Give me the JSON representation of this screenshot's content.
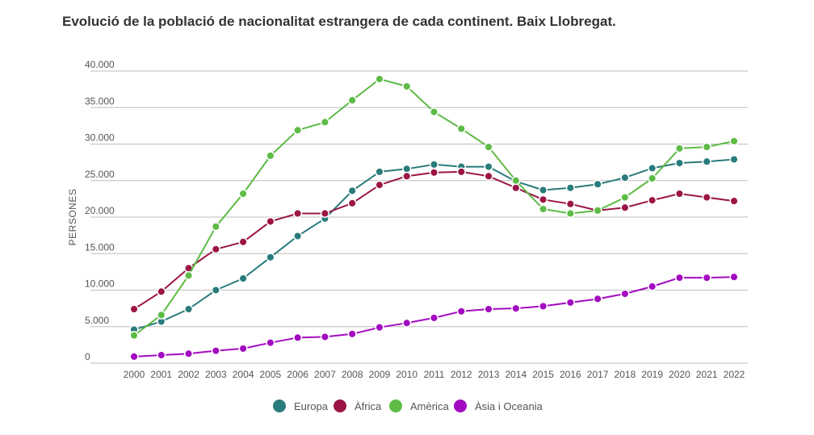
{
  "chart_data": {
    "type": "line",
    "title": "Evolució de la població de nacionalitat estrangera de cada continent. Baix Llobregat.",
    "xlabel": "",
    "ylabel": "PERSONES",
    "ylim": [
      0,
      40000
    ],
    "yticks": [
      0,
      5000,
      10000,
      15000,
      20000,
      25000,
      30000,
      35000,
      40000
    ],
    "ytick_labels": [
      "0",
      "5.000",
      "10.000",
      "15.000",
      "20.000",
      "25.000",
      "30.000",
      "35.000",
      "40.000"
    ],
    "x": [
      "2000",
      "2001",
      "2002",
      "2003",
      "2004",
      "2005",
      "2006",
      "2007",
      "2008",
      "2009",
      "2010",
      "2011",
      "2012",
      "2013",
      "2014",
      "2015",
      "2016",
      "2017",
      "2018",
      "2019",
      "2020",
      "2021",
      "2022"
    ],
    "grid": true,
    "legend_position": "bottom",
    "series": [
      {
        "name": "Europa",
        "color": "#2a7b7b",
        "values": [
          4600,
          5700,
          7400,
          10000,
          11600,
          14500,
          17400,
          19800,
          23600,
          26200,
          26600,
          27200,
          26900,
          26900,
          24900,
          23700,
          24000,
          24500,
          25400,
          26700,
          27400,
          27600,
          27900
        ]
      },
      {
        "name": "Àfrica",
        "color": "#9b1545",
        "values": [
          7400,
          9800,
          13000,
          15600,
          16600,
          19400,
          20500,
          20500,
          21900,
          24400,
          25600,
          26100,
          26200,
          25600,
          24000,
          22400,
          21800,
          20900,
          21300,
          22300,
          23200,
          22700,
          22200
        ]
      },
      {
        "name": "Amèrica",
        "color": "#5dbb46",
        "values": [
          3800,
          6600,
          12000,
          18700,
          23200,
          28400,
          31900,
          33000,
          36000,
          38900,
          37900,
          34400,
          32100,
          29600,
          25000,
          21100,
          20500,
          20900,
          22700,
          25300,
          29400,
          29600,
          30400
        ]
      },
      {
        "name": "Àsia i Oceania",
        "color": "#a30bc1",
        "values": [
          900,
          1100,
          1300,
          1700,
          2000,
          2800,
          3500,
          3600,
          4000,
          4900,
          5500,
          6200,
          7100,
          7400,
          7500,
          7800,
          8300,
          8800,
          9500,
          10500,
          11700,
          11700,
          11800
        ]
      }
    ]
  }
}
